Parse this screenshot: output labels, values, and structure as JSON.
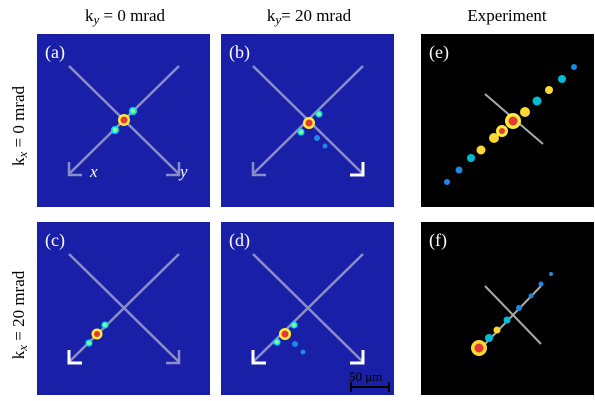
{
  "figure": {
    "columns": [
      {
        "prefix": "k",
        "sub": "y",
        "suffix": " = 0 mrad"
      },
      {
        "prefix": "k",
        "sub": "y",
        "suffix": "= 20 mrad"
      },
      {
        "text": "Experiment"
      }
    ],
    "rows": [
      {
        "prefix": "k",
        "sub": "x",
        "suffix": " = 0 mrad"
      },
      {
        "prefix": "k",
        "sub": "x",
        "suffix": " = 20 mrad"
      }
    ],
    "panels": {
      "a": "(a)",
      "b": "(b)",
      "c": "(c)",
      "d": "(d)",
      "e": "(e)",
      "f": "(f)"
    },
    "axis_labels": {
      "x": "x",
      "y": "y"
    },
    "scalebar_label": "50 μm",
    "colors": {
      "sim_bg": "#1a1fa8",
      "exp_bg": "#000000",
      "arrow": "#ffffff"
    }
  }
}
